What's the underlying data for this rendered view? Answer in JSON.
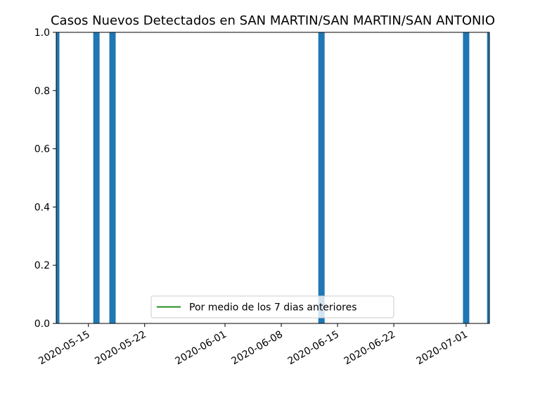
{
  "chart_data": {
    "type": "bar",
    "title": "Casos Nuevos Detectados en SAN MARTIN/SAN MARTIN/SAN ANTONIO",
    "xlabel": "",
    "ylabel": "",
    "x_axis": {
      "type": "date",
      "range": [
        "2020-05-11",
        "2020-07-04"
      ],
      "ticks": [
        "2020-05-15",
        "2020-05-22",
        "2020-06-01",
        "2020-06-08",
        "2020-06-15",
        "2020-06-22",
        "2020-07-01"
      ]
    },
    "y_axis": {
      "range": [
        0,
        1.0
      ],
      "ticks": [
        "0.0",
        "0.2",
        "0.4",
        "0.6",
        "0.8",
        "1.0"
      ]
    },
    "bars": {
      "color": "#1f77b4",
      "dates": [
        "2020-05-11",
        "2020-05-16",
        "2020-05-18",
        "2020-06-13",
        "2020-07-01",
        "2020-07-04"
      ],
      "values": [
        1,
        1,
        1,
        1,
        1,
        1
      ]
    },
    "series": [
      {
        "name": "Por medio de los 7 dias anteriores",
        "type": "line",
        "color": "#228b22",
        "values": []
      }
    ],
    "legend": {
      "position": "lower-center",
      "entries": [
        "Por medio de los 7 dias anteriores"
      ]
    },
    "grid": false
  }
}
